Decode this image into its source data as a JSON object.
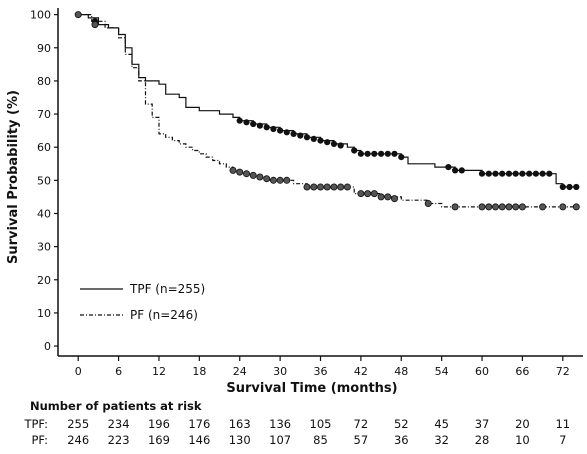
{
  "chart_data": {
    "type": "line",
    "xlabel": "Survival Time (months)",
    "ylabel": "Survival Probability (%)",
    "xlim": [
      -3,
      75
    ],
    "ylim": [
      -3,
      102
    ],
    "xticks": [
      0,
      6,
      12,
      18,
      24,
      30,
      36,
      42,
      48,
      54,
      60,
      66,
      72
    ],
    "yticks": [
      0,
      10,
      20,
      30,
      40,
      50,
      60,
      70,
      80,
      90,
      100
    ],
    "legend_position": "bottom-left",
    "grid": false,
    "series": [
      {
        "name": "TPF (n=255)",
        "style": "solid",
        "color": "#111111",
        "points": [
          [
            0,
            100
          ],
          [
            1.5,
            99
          ],
          [
            3,
            97
          ],
          [
            4.5,
            96
          ],
          [
            6,
            94
          ],
          [
            7,
            90
          ],
          [
            8,
            85
          ],
          [
            9,
            81
          ],
          [
            10,
            80
          ],
          [
            11,
            80
          ],
          [
            12,
            79
          ],
          [
            13,
            76
          ],
          [
            15,
            75
          ],
          [
            16,
            72
          ],
          [
            18,
            71
          ],
          [
            20,
            71
          ],
          [
            21,
            70
          ],
          [
            22,
            70
          ],
          [
            23,
            69
          ],
          [
            24,
            68
          ],
          [
            26,
            67
          ],
          [
            28,
            66
          ],
          [
            30,
            65
          ],
          [
            32,
            64
          ],
          [
            34,
            63
          ],
          [
            36,
            62
          ],
          [
            38,
            61
          ],
          [
            40,
            60
          ],
          [
            41,
            59
          ],
          [
            42,
            58
          ],
          [
            44,
            58
          ],
          [
            46,
            58
          ],
          [
            48,
            57
          ],
          [
            49,
            55
          ],
          [
            51,
            55
          ],
          [
            52,
            55
          ],
          [
            53,
            54
          ],
          [
            55,
            54
          ],
          [
            56,
            53
          ],
          [
            59,
            53
          ],
          [
            60,
            52
          ],
          [
            63,
            52
          ],
          [
            66,
            52
          ],
          [
            68,
            52
          ],
          [
            70,
            52
          ],
          [
            71,
            49
          ],
          [
            72,
            48
          ],
          [
            74,
            48
          ]
        ],
        "censored": [
          [
            0,
            100
          ],
          [
            2.5,
            98
          ],
          [
            24,
            68
          ],
          [
            25,
            67.5
          ],
          [
            26,
            67
          ],
          [
            27,
            66.5
          ],
          [
            28,
            66
          ],
          [
            29,
            65.5
          ],
          [
            30,
            65
          ],
          [
            31,
            64.5
          ],
          [
            32,
            64
          ],
          [
            33,
            63.5
          ],
          [
            34,
            63
          ],
          [
            35,
            62.5
          ],
          [
            36,
            62
          ],
          [
            37,
            61.5
          ],
          [
            38,
            61
          ],
          [
            39,
            60.5
          ],
          [
            41,
            59
          ],
          [
            42,
            58
          ],
          [
            43,
            58
          ],
          [
            44,
            58
          ],
          [
            45,
            58
          ],
          [
            46,
            58
          ],
          [
            47,
            58
          ],
          [
            48,
            57
          ],
          [
            55,
            54
          ],
          [
            56,
            53
          ],
          [
            57,
            53
          ],
          [
            60,
            52
          ],
          [
            61,
            52
          ],
          [
            62,
            52
          ],
          [
            63,
            52
          ],
          [
            64,
            52
          ],
          [
            65,
            52
          ],
          [
            66,
            52
          ],
          [
            67,
            52
          ],
          [
            68,
            52
          ],
          [
            69,
            52
          ],
          [
            70,
            52
          ],
          [
            72,
            48
          ],
          [
            73,
            48
          ],
          [
            74,
            48
          ]
        ]
      },
      {
        "name": "PF (n=246)",
        "style": "dashdot",
        "color": "#111111",
        "points": [
          [
            0,
            100
          ],
          [
            2,
            98
          ],
          [
            4,
            96
          ],
          [
            6,
            93
          ],
          [
            7,
            88
          ],
          [
            8,
            84
          ],
          [
            9,
            80
          ],
          [
            10,
            73
          ],
          [
            11,
            69
          ],
          [
            12,
            64
          ],
          [
            13,
            63
          ],
          [
            14,
            62
          ],
          [
            15,
            61
          ],
          [
            16,
            60
          ],
          [
            17,
            59
          ],
          [
            18,
            58
          ],
          [
            19,
            57
          ],
          [
            20,
            56
          ],
          [
            21,
            55
          ],
          [
            22,
            54
          ],
          [
            23,
            53
          ],
          [
            24,
            52
          ],
          [
            25,
            52
          ],
          [
            26,
            51
          ],
          [
            27,
            51
          ],
          [
            28,
            50
          ],
          [
            30,
            50
          ],
          [
            32,
            49
          ],
          [
            34,
            48
          ],
          [
            36,
            48
          ],
          [
            38,
            48
          ],
          [
            40,
            48
          ],
          [
            41,
            46
          ],
          [
            44,
            46
          ],
          [
            45,
            45
          ],
          [
            46,
            45
          ],
          [
            48,
            44
          ],
          [
            50,
            44
          ],
          [
            52,
            43
          ],
          [
            54,
            42
          ],
          [
            56,
            42
          ],
          [
            60,
            42
          ],
          [
            64,
            42
          ],
          [
            68,
            42
          ],
          [
            72,
            42
          ],
          [
            74,
            42
          ]
        ],
        "censored": [
          [
            0,
            100
          ],
          [
            2.5,
            97
          ],
          [
            23,
            53
          ],
          [
            24,
            52.5
          ],
          [
            25,
            52
          ],
          [
            26,
            51.5
          ],
          [
            27,
            51
          ],
          [
            28,
            50.5
          ],
          [
            29,
            50
          ],
          [
            30,
            50
          ],
          [
            31,
            50
          ],
          [
            34,
            48
          ],
          [
            35,
            48
          ],
          [
            36,
            48
          ],
          [
            37,
            48
          ],
          [
            38,
            48
          ],
          [
            39,
            48
          ],
          [
            40,
            48
          ],
          [
            42,
            46
          ],
          [
            43,
            46
          ],
          [
            44,
            46
          ],
          [
            45,
            45
          ],
          [
            46,
            45
          ],
          [
            47,
            44.5
          ],
          [
            52,
            43
          ],
          [
            56,
            42
          ],
          [
            60,
            42
          ],
          [
            61,
            42
          ],
          [
            62,
            42
          ],
          [
            63,
            42
          ],
          [
            64,
            42
          ],
          [
            65,
            42
          ],
          [
            66,
            42
          ],
          [
            69,
            42
          ],
          [
            72,
            42
          ],
          [
            74,
            42
          ]
        ]
      }
    ]
  },
  "risk_table": {
    "title": "Number of patients at risk",
    "times": [
      0,
      6,
      12,
      18,
      24,
      30,
      36,
      42,
      48,
      54,
      60,
      66,
      72
    ],
    "rows": [
      {
        "label": "TPF:",
        "values": [
          "255",
          "234",
          "196",
          "176",
          "163",
          "136",
          "105",
          "72",
          "52",
          "45",
          "37",
          "20",
          "11"
        ]
      },
      {
        "label": "PF:",
        "values": [
          "246",
          "223",
          "169",
          "146",
          "130",
          "107",
          "85",
          "57",
          "36",
          "32",
          "28",
          "10",
          "7"
        ]
      }
    ]
  }
}
